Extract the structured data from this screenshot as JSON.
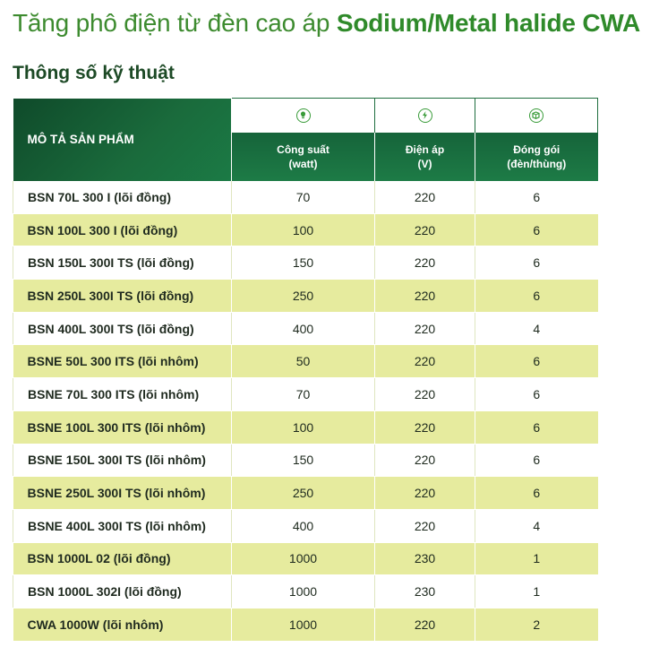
{
  "title_normal": "Tăng phô điện từ đèn cao áp ",
  "title_bold": "Sodium/Metal halide CWA",
  "subtitle": "Thông số kỹ thuật",
  "table": {
    "header_desc": "MÔ TẢ SẢN PHẨM",
    "columns": [
      {
        "icon": "lightbulb-icon",
        "line1": "Công suất",
        "line2": "(watt)"
      },
      {
        "icon": "lightning-icon",
        "line1": "Điện áp",
        "line2": "(V)"
      },
      {
        "icon": "box-icon",
        "line1": "Đóng gói",
        "line2": "(đèn/thùng)"
      }
    ],
    "rows": [
      {
        "desc": "BSN 70L 300 I (lõi đồng)",
        "power": "70",
        "voltage": "220",
        "pack": "6"
      },
      {
        "desc": "BSN 100L 300 I (lõi đồng)",
        "power": "100",
        "voltage": "220",
        "pack": "6"
      },
      {
        "desc": "BSN 150L 300I TS (lõi đồng)",
        "power": "150",
        "voltage": "220",
        "pack": "6"
      },
      {
        "desc": "BSN 250L 300I TS (lõi đồng)",
        "power": "250",
        "voltage": "220",
        "pack": "6"
      },
      {
        "desc": "BSN 400L 300I TS (lõi đồng)",
        "power": "400",
        "voltage": "220",
        "pack": "4"
      },
      {
        "desc": "BSNE 50L 300 ITS (lõi nhôm)",
        "power": "50",
        "voltage": "220",
        "pack": "6"
      },
      {
        "desc": "BSNE 70L 300 ITS (lõi nhôm)",
        "power": "70",
        "voltage": "220",
        "pack": "6"
      },
      {
        "desc": "BSNE 100L 300 ITS (lõi nhôm)",
        "power": "100",
        "voltage": "220",
        "pack": "6"
      },
      {
        "desc": "BSNE 150L 300I TS (lõi nhôm)",
        "power": "150",
        "voltage": "220",
        "pack": "6"
      },
      {
        "desc": "BSNE 250L 300I TS (lõi nhôm)",
        "power": "250",
        "voltage": "220",
        "pack": "6"
      },
      {
        "desc": "BSNE 400L 300I TS (lõi nhôm)",
        "power": "400",
        "voltage": "220",
        "pack": "4"
      },
      {
        "desc": "BSN 1000L 02 (lõi đồng)",
        "power": "1000",
        "voltage": "230",
        "pack": "1"
      },
      {
        "desc": "BSN 1000L 302I (lõi đồng)",
        "power": "1000",
        "voltage": "230",
        "pack": "1"
      },
      {
        "desc": "CWA 1000W (lõi nhôm)",
        "power": "1000",
        "voltage": "220",
        "pack": "2"
      }
    ]
  },
  "colors": {
    "title_green": "#3d8b2f",
    "header_dark_green": "#0f4a2a",
    "row_highlight": "#e6eb9e"
  }
}
